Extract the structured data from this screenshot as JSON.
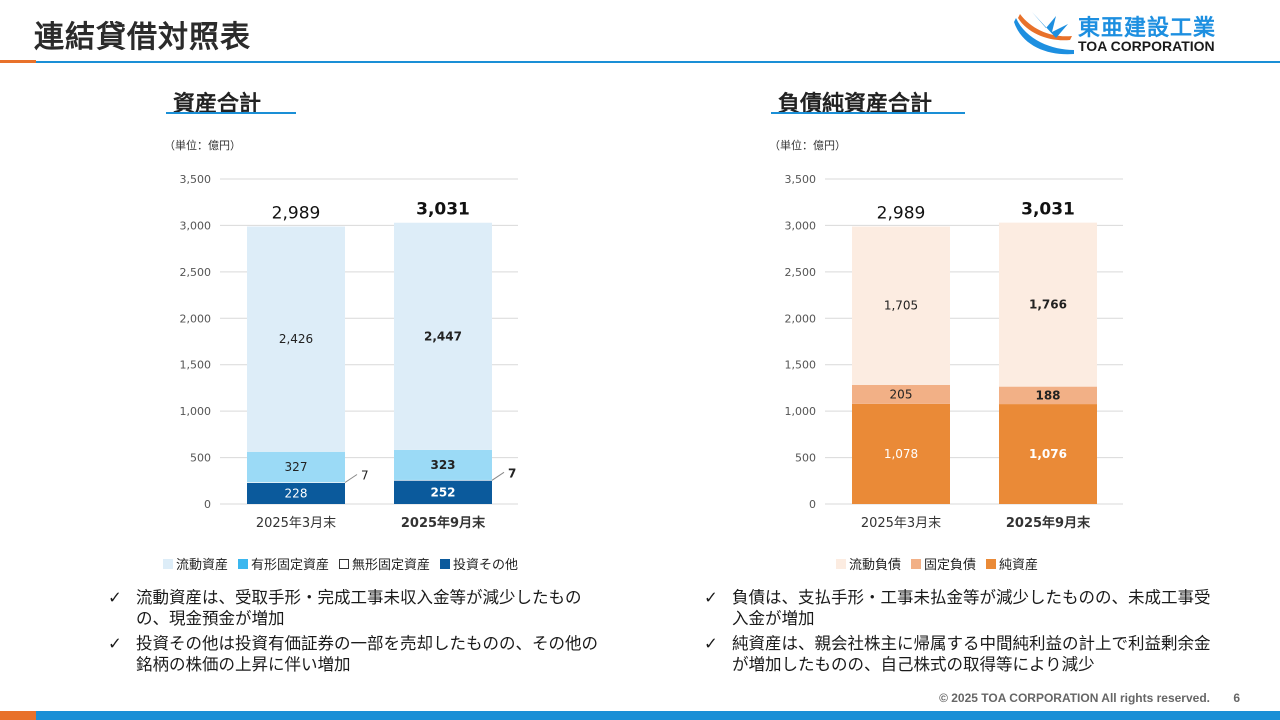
{
  "header": {
    "title": "連結貸借対照表"
  },
  "logo": {
    "jp": "東亜建設工業",
    "en": "TOA CORPORATION"
  },
  "chart_data": [
    {
      "type": "bar",
      "stacked": true,
      "title": "資産合計",
      "unit_label": "（単位：億円）",
      "categories": [
        "2025年3月末",
        "2025年9月末"
      ],
      "ylim": [
        0,
        3500
      ],
      "yticks": [
        "0",
        "500",
        "1,000",
        "1,500",
        "2,000",
        "2,500",
        "3,000",
        "3,500"
      ],
      "ytick_values": [
        0,
        500,
        1000,
        1500,
        2000,
        2500,
        3000,
        3500
      ],
      "series": [
        {
          "name": "投資その他",
          "values": [
            228,
            252
          ],
          "labels": [
            "228",
            "252"
          ],
          "color": "#0b5a9c",
          "label_color": "#ffffff"
        },
        {
          "name": "無形固定資産",
          "values": [
            7,
            7
          ],
          "labels": [
            "7",
            "7"
          ],
          "color": "#ffffff",
          "label_color": "#222222",
          "callout": true
        },
        {
          "name": "有形固定資産",
          "values": [
            327,
            323
          ],
          "labels": [
            "327",
            "323"
          ],
          "color": "#9bdaf6",
          "label_color": "#222222"
        },
        {
          "name": "流動資産",
          "values": [
            2426,
            2447
          ],
          "labels": [
            "2,426",
            "2,447"
          ],
          "color": "#ddedf8",
          "label_color": "#222222"
        }
      ],
      "totals": [
        2989,
        3031
      ],
      "total_labels": [
        "2,989",
        "3,031"
      ],
      "legend": [
        {
          "name": "流動資産",
          "color": "#ddedf8"
        },
        {
          "name": "有形固定資産",
          "color": "#3bb7ef"
        },
        {
          "name": "無形固定資産",
          "color": "#ffffff"
        },
        {
          "name": "投資その他",
          "color": "#0b5a9c"
        }
      ]
    },
    {
      "type": "bar",
      "stacked": true,
      "title": "負債純資産合計",
      "unit_label": "（単位：億円）",
      "categories": [
        "2025年3月末",
        "2025年9月末"
      ],
      "ylim": [
        0,
        3500
      ],
      "yticks": [
        "0",
        "500",
        "1,000",
        "1,500",
        "2,000",
        "2,500",
        "3,000",
        "3,500"
      ],
      "ytick_values": [
        0,
        500,
        1000,
        1500,
        2000,
        2500,
        3000,
        3500
      ],
      "series": [
        {
          "name": "純資産",
          "values": [
            1078,
            1076
          ],
          "labels": [
            "1,078",
            "1,076"
          ],
          "color": "#ea8a37",
          "label_color": "#ffffff"
        },
        {
          "name": "固定負債",
          "values": [
            205,
            188
          ],
          "labels": [
            "205",
            "188"
          ],
          "color": "#f2b086",
          "label_color": "#222222"
        },
        {
          "name": "流動負債",
          "values": [
            1705,
            1766
          ],
          "labels": [
            "1,705",
            "1,766"
          ],
          "color": "#fcece1",
          "label_color": "#222222"
        }
      ],
      "totals": [
        2989,
        3031
      ],
      "total_labels": [
        "2,989",
        "3,031"
      ],
      "legend": [
        {
          "name": "流動負債",
          "color": "#fcece1"
        },
        {
          "name": "固定負債",
          "color": "#f2b086"
        },
        {
          "name": "純資産",
          "color": "#ea8a37"
        }
      ]
    }
  ],
  "notes_left": [
    "流動資産は、受取手形・完成工事未収入金等が減少したものの、現金預金が増加",
    "投資その他は投資有価証券の一部を売却したものの、その他の銘柄の株価の上昇に伴い増加"
  ],
  "notes_right": [
    "負債は、支払手形・工事未払金等が減少したものの、未成工事受入金が増加",
    "純資産は、親会社株主に帰属する中間純利益の計上で利益剰余金が増加したものの、自己株式の取得等により減少"
  ],
  "check_mark": "✓",
  "footer": {
    "copyright": "© 2025 TOA CORPORATION  All rights reserved.",
    "page": "6"
  }
}
